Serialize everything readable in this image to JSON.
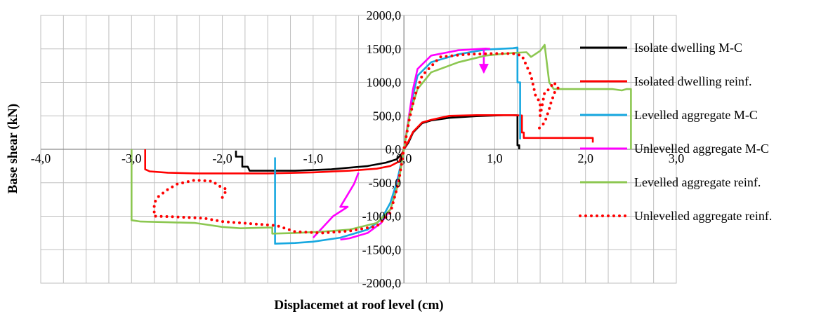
{
  "chart_data": {
    "type": "line",
    "title": "",
    "xlabel": "Displacemet at roof level (cm)",
    "ylabel": "Base shear (kN)",
    "xlim": [
      -4.0,
      3.0
    ],
    "ylim": [
      -2000.0,
      2000.0
    ],
    "xticks": [
      -4.0,
      -3.0,
      -2.0,
      -1.0,
      0.0,
      1.0,
      2.0,
      3.0
    ],
    "xtick_labels": [
      "-4,0",
      "-3,0",
      "-2,0",
      "-1,0",
      "0,0",
      "1,0",
      "2,0",
      "3,0"
    ],
    "yticks": [
      2000.0,
      1500.0,
      1000.0,
      500.0,
      0.0,
      -500.0,
      -1000.0,
      -1500.0,
      -2000.0
    ],
    "ytick_labels": [
      "2000,0",
      "1500,0",
      "1000,0",
      "500,0",
      "0,0",
      "-500,0",
      "-1000,0",
      "-1500,0",
      "-2000,0"
    ],
    "grid": true,
    "legend_position": "right",
    "series": [
      {
        "name": "Isolate dwelling M-C",
        "color": "#000000",
        "dash": "solid",
        "points": [
          [
            -1.85,
            -20
          ],
          [
            -1.85,
            -110
          ],
          [
            -1.78,
            -110
          ],
          [
            -1.78,
            -260
          ],
          [
            -1.72,
            -260
          ],
          [
            -1.7,
            -320
          ],
          [
            -1.6,
            -320
          ],
          [
            -1.2,
            -320
          ],
          [
            -0.8,
            -300
          ],
          [
            -0.4,
            -250
          ],
          [
            -0.2,
            -200
          ],
          [
            -0.08,
            -150
          ],
          [
            -0.02,
            -60
          ],
          [
            0.0,
            0
          ],
          [
            0.05,
            100
          ],
          [
            0.1,
            250
          ],
          [
            0.2,
            390
          ],
          [
            0.3,
            430
          ],
          [
            0.5,
            470
          ],
          [
            0.8,
            495
          ],
          [
            1.0,
            505
          ],
          [
            1.1,
            510
          ],
          [
            1.2,
            510
          ],
          [
            1.25,
            508
          ],
          [
            1.25,
            60
          ],
          [
            1.27,
            60
          ],
          [
            1.27,
            0
          ]
        ]
      },
      {
        "name": "Isolated dwelling reinf.",
        "color": "#ff0000",
        "dash": "solid",
        "points": [
          [
            -2.85,
            0
          ],
          [
            -2.85,
            -300
          ],
          [
            -2.8,
            -330
          ],
          [
            -2.6,
            -350
          ],
          [
            -2.3,
            -360
          ],
          [
            -2.0,
            -360
          ],
          [
            -1.5,
            -360
          ],
          [
            -1.0,
            -345
          ],
          [
            -0.6,
            -320
          ],
          [
            -0.3,
            -290
          ],
          [
            -0.15,
            -250
          ],
          [
            -0.05,
            -180
          ],
          [
            0.0,
            0
          ],
          [
            0.05,
            120
          ],
          [
            0.1,
            260
          ],
          [
            0.2,
            400
          ],
          [
            0.3,
            440
          ],
          [
            0.5,
            500
          ],
          [
            0.8,
            510
          ],
          [
            1.0,
            510
          ],
          [
            1.2,
            510
          ],
          [
            1.3,
            505
          ],
          [
            1.3,
            250
          ],
          [
            1.32,
            250
          ],
          [
            1.32,
            170
          ],
          [
            1.5,
            170
          ],
          [
            2.0,
            170
          ],
          [
            2.08,
            170
          ],
          [
            2.08,
            100
          ]
        ]
      },
      {
        "name": "Levelled aggregate M-C",
        "color": "#17a8e0",
        "dash": "solid",
        "points": [
          [
            -1.42,
            -120
          ],
          [
            -1.42,
            -1410
          ],
          [
            -1.2,
            -1400
          ],
          [
            -1.0,
            -1380
          ],
          [
            -0.7,
            -1320
          ],
          [
            -0.4,
            -1200
          ],
          [
            -0.25,
            -1050
          ],
          [
            -0.15,
            -800
          ],
          [
            -0.08,
            -500
          ],
          [
            -0.03,
            -200
          ],
          [
            0.0,
            0
          ],
          [
            0.05,
            400
          ],
          [
            0.1,
            800
          ],
          [
            0.15,
            1100
          ],
          [
            0.3,
            1300
          ],
          [
            0.6,
            1420
          ],
          [
            0.9,
            1490
          ],
          [
            1.2,
            1510
          ],
          [
            1.25,
            1520
          ],
          [
            1.25,
            1000
          ],
          [
            1.28,
            1000
          ],
          [
            1.28,
            150
          ]
        ]
      },
      {
        "name": "Unlevelled aggregate M-C",
        "color": "#ff00ff",
        "dash": "solid",
        "points": [
          [
            -0.7,
            -1350
          ],
          [
            -0.6,
            -1330
          ],
          [
            -0.4,
            -1250
          ],
          [
            -0.25,
            -1100
          ],
          [
            -0.15,
            -900
          ],
          [
            -0.08,
            -600
          ],
          [
            -0.03,
            -250
          ],
          [
            0.0,
            0
          ],
          [
            0.05,
            450
          ],
          [
            0.1,
            900
          ],
          [
            0.15,
            1200
          ],
          [
            0.3,
            1400
          ],
          [
            0.6,
            1480
          ],
          [
            0.9,
            1505
          ],
          [
            0.95,
            1500
          ]
        ],
        "extra_paths": [
          [
            [
              -1.0,
              -1320
            ],
            [
              -0.78,
              -1000
            ],
            [
              -0.62,
              -860
            ],
            [
              -0.7,
              -860
            ],
            [
              -0.55,
              -520
            ],
            [
              -0.5,
              -350
            ]
          ],
          [
            [
              0.88,
              1500
            ],
            [
              0.88,
              1150
            ]
          ]
        ]
      },
      {
        "name": "Levelled aggregate reinf.",
        "color": "#8cc751",
        "dash": "solid",
        "points": [
          [
            -3.0,
            0
          ],
          [
            -3.0,
            -1060
          ],
          [
            -2.9,
            -1080
          ],
          [
            -2.6,
            -1090
          ],
          [
            -2.3,
            -1100
          ],
          [
            -2.2,
            -1120
          ],
          [
            -2.0,
            -1160
          ],
          [
            -1.8,
            -1180
          ],
          [
            -1.5,
            -1170
          ],
          [
            -1.45,
            -1170
          ],
          [
            -1.45,
            -1260
          ],
          [
            -1.2,
            -1250
          ],
          [
            -0.9,
            -1230
          ],
          [
            -0.6,
            -1200
          ],
          [
            -0.3,
            -1100
          ],
          [
            -0.15,
            -900
          ],
          [
            -0.06,
            -500
          ],
          [
            0.0,
            0
          ],
          [
            0.06,
            500
          ],
          [
            0.15,
            900
          ],
          [
            0.3,
            1150
          ],
          [
            0.6,
            1300
          ],
          [
            0.9,
            1400
          ],
          [
            1.2,
            1440
          ],
          [
            1.35,
            1450
          ],
          [
            1.4,
            1380
          ],
          [
            1.5,
            1470
          ],
          [
            1.55,
            1560
          ],
          [
            1.6,
            1000
          ],
          [
            1.65,
            900
          ],
          [
            2.0,
            900
          ],
          [
            2.3,
            900
          ],
          [
            2.4,
            880
          ],
          [
            2.45,
            900
          ],
          [
            2.5,
            900
          ],
          [
            2.5,
            0
          ]
        ]
      },
      {
        "name": "Unlevelled aggregate reinf.",
        "color": "#ff0000",
        "dash": "dotted",
        "points": [
          [
            -2.0,
            -720
          ],
          [
            -1.95,
            -600
          ],
          [
            -2.05,
            -540
          ],
          [
            -2.1,
            -480
          ],
          [
            -2.3,
            -460
          ],
          [
            -2.5,
            -520
          ],
          [
            -2.6,
            -600
          ],
          [
            -2.7,
            -700
          ],
          [
            -2.75,
            -800
          ],
          [
            -2.75,
            -1000
          ],
          [
            -2.5,
            -1010
          ],
          [
            -2.2,
            -1030
          ],
          [
            -2.0,
            -1080
          ],
          [
            -1.7,
            -1110
          ],
          [
            -1.4,
            -1140
          ],
          [
            -1.2,
            -1230
          ],
          [
            -0.9,
            -1250
          ],
          [
            -0.6,
            -1220
          ],
          [
            -0.3,
            -1150
          ],
          [
            -0.15,
            -950
          ],
          [
            -0.06,
            -500
          ],
          [
            0.0,
            0
          ],
          [
            0.06,
            450
          ],
          [
            0.12,
            800
          ],
          [
            0.2,
            1100
          ],
          [
            0.4,
            1380
          ],
          [
            0.7,
            1420
          ],
          [
            1.0,
            1430
          ],
          [
            1.2,
            1430
          ],
          [
            1.3,
            1400
          ],
          [
            1.4,
            1100
          ],
          [
            1.45,
            800
          ],
          [
            1.5,
            700
          ],
          [
            1.5,
            500
          ],
          [
            1.55,
            850
          ],
          [
            1.6,
            900
          ],
          [
            1.65,
            1000
          ],
          [
            1.7,
            920
          ],
          [
            1.66,
            850
          ],
          [
            1.62,
            700
          ],
          [
            1.6,
            600
          ],
          [
            1.55,
            400
          ],
          [
            1.48,
            300
          ]
        ]
      }
    ]
  }
}
